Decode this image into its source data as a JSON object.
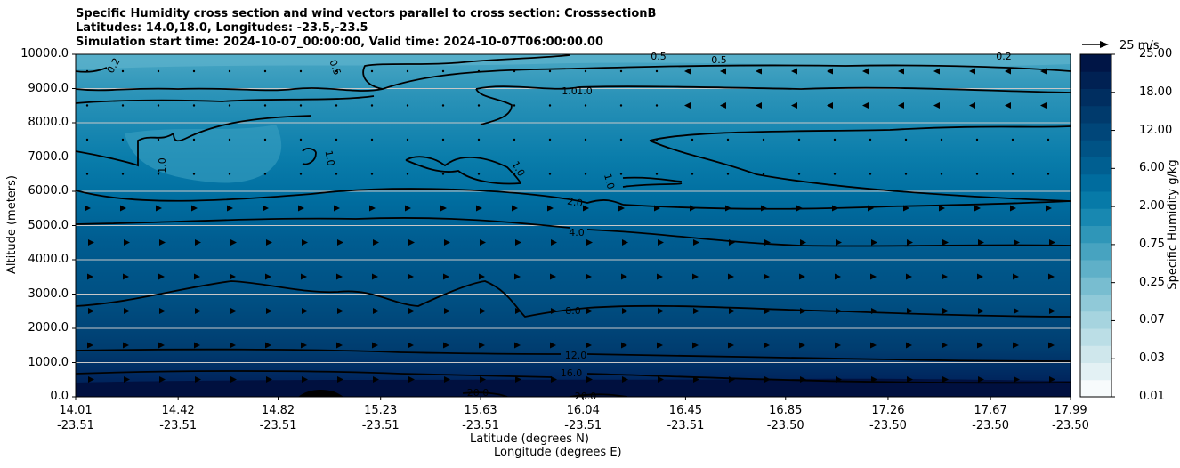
{
  "titles": {
    "line1": "Specific Humidity cross section and wind vectors parallel to cross section: CrosssectionB",
    "line2": "Latitudes: 14.0,18.0, Longitudes: -23.5,-23.5",
    "line3": "Simulation start time: 2024-10-07_00:00:00, Valid time: 2024-10-07T06:00:00.00"
  },
  "chart_data": {
    "type": "filled-contour cross section with wind vectors",
    "xlabel_line1": "Latitude (degrees N)",
    "xlabel_line2": "Longitude (degrees E)",
    "ylabel": "Altitude (meters)",
    "ylim": [
      0,
      10000
    ],
    "y_ticks": [
      "0.0",
      "1000.0",
      "2000.0",
      "3000.0",
      "4000.0",
      "5000.0",
      "6000.0",
      "7000.0",
      "8000.0",
      "9000.0",
      "10000.0"
    ],
    "x_ticks": [
      {
        "lat": "14.01",
        "lon": "-23.51"
      },
      {
        "lat": "14.42",
        "lon": "-23.51"
      },
      {
        "lat": "14.82",
        "lon": "-23.51"
      },
      {
        "lat": "15.23",
        "lon": "-23.51"
      },
      {
        "lat": "15.63",
        "lon": "-23.51"
      },
      {
        "lat": "16.04",
        "lon": "-23.51"
      },
      {
        "lat": "16.45",
        "lon": "-23.51"
      },
      {
        "lat": "16.85",
        "lon": "-23.50"
      },
      {
        "lat": "17.26",
        "lon": "-23.50"
      },
      {
        "lat": "17.67",
        "lon": "-23.50"
      },
      {
        "lat": "17.99",
        "lon": "-23.50"
      }
    ],
    "colorbar": {
      "label": "Specific Humidity g/kg",
      "tick_labels": [
        "0.01",
        "0.03",
        "0.07",
        "0.25",
        "0.75",
        "2.00",
        "6.00",
        "12.00",
        "18.00",
        "25.00"
      ],
      "colors": [
        "#f7fbfc",
        "#e3f1f4",
        "#cfe7ec",
        "#bbdee6",
        "#a6d4df",
        "#90c9d8",
        "#78bdd0",
        "#5fb0c8",
        "#47a3c0",
        "#2f96b8",
        "#1888b1",
        "#077aa8",
        "#006c9e",
        "#005f91",
        "#005385",
        "#004679",
        "#003a6c",
        "#002e60",
        "#002153",
        "#001546"
      ]
    },
    "contour_labels": [
      "0.2",
      "0.5",
      "0.5",
      "0.5",
      "0.2",
      "1.0",
      "1.0",
      "1.0",
      "1.0",
      "1.0",
      "1.0",
      "2.0",
      "4.0",
      "8.0",
      "12.0",
      "16.0",
      "20.0",
      "20.0"
    ],
    "wind_reference": {
      "label": "25 m/s"
    },
    "grid": "horizontal"
  }
}
